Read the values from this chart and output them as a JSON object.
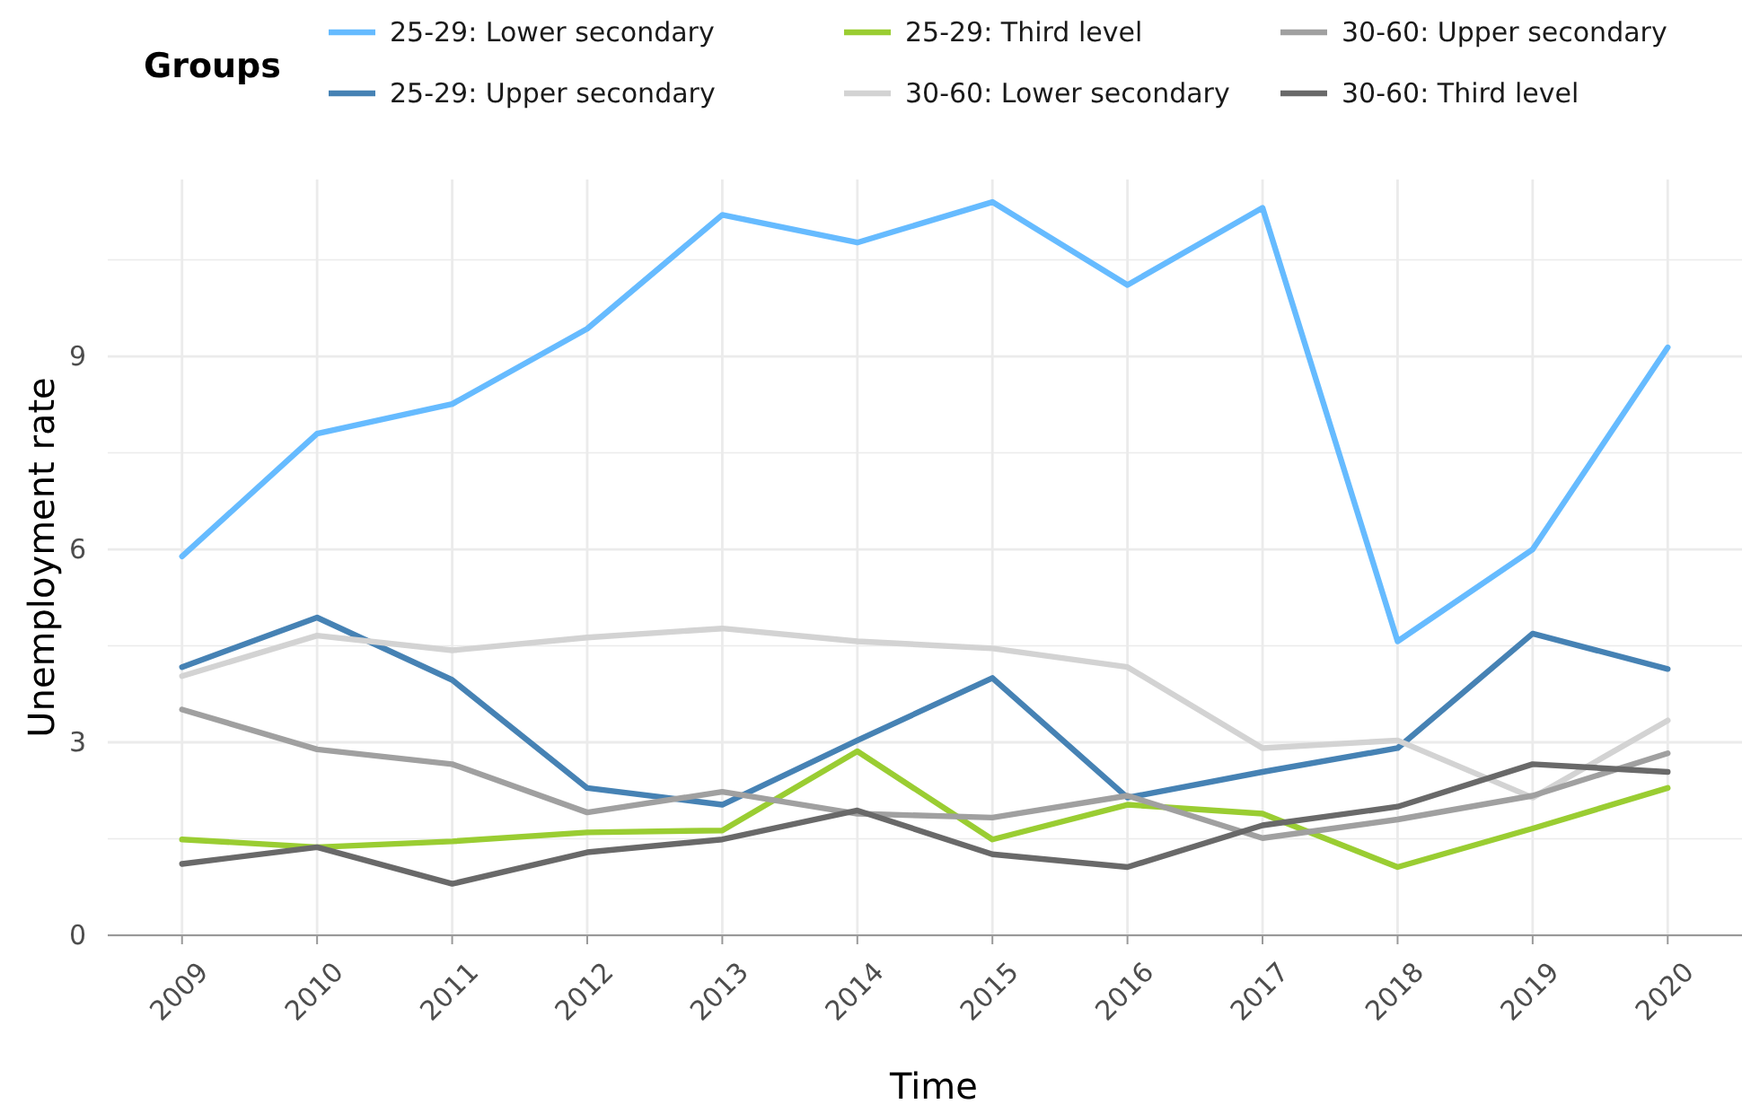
{
  "chart_data": {
    "type": "line",
    "xlabel": "Time",
    "ylabel": "Unemployment rate",
    "legend_title": "Groups",
    "legend": "top",
    "grid": true,
    "x": [
      2009,
      2010,
      2011,
      2012,
      2013,
      2014,
      2015,
      2016,
      2017,
      2018,
      2019,
      2020
    ],
    "xlim": [
      2008.45,
      2020.55
    ],
    "xticks": [
      2009,
      2010,
      2011,
      2012,
      2013,
      2014,
      2015,
      2016,
      2017,
      2018,
      2019,
      2020
    ],
    "ylim": [
      0,
      11.75
    ],
    "yticks": [
      0,
      {
        "value": 1.5,
        "label": null
      },
      3,
      {
        "value": 4.5,
        "label": null
      },
      6,
      {
        "value": 7.5,
        "label": null
      },
      9,
      {
        "value": 10.5,
        "label": null
      }
    ],
    "series": [
      {
        "name": "25-29: Lower secondary",
        "color": "#66bbff",
        "values": [
          5.89,
          7.8,
          8.26,
          9.43,
          11.2,
          10.77,
          11.4,
          10.11,
          11.31,
          4.57,
          6.0,
          9.14
        ]
      },
      {
        "name": "25-29: Upper secondary",
        "color": "#4682b4",
        "values": [
          4.17,
          4.94,
          3.97,
          2.29,
          2.03,
          3.03,
          4.0,
          2.14,
          2.54,
          2.91,
          4.69,
          4.14
        ]
      },
      {
        "name": "25-29: Third level",
        "color": "#9acd32",
        "values": [
          1.49,
          1.37,
          1.46,
          1.6,
          1.63,
          2.86,
          1.49,
          2.03,
          1.89,
          1.06,
          1.66,
          2.29
        ]
      },
      {
        "name": "30-60: Lower secondary",
        "color": "#d3d3d3",
        "values": [
          4.03,
          4.66,
          4.43,
          4.63,
          4.77,
          4.57,
          4.46,
          4.17,
          2.91,
          3.03,
          2.14,
          3.34
        ]
      },
      {
        "name": "30-60: Upper secondary",
        "color": "#a0a0a0",
        "values": [
          3.51,
          2.89,
          2.66,
          1.91,
          2.23,
          1.89,
          1.83,
          2.17,
          1.51,
          1.8,
          2.17,
          2.83
        ]
      },
      {
        "name": "30-60: Third level",
        "color": "#696969",
        "values": [
          1.11,
          1.37,
          0.8,
          1.29,
          1.49,
          1.94,
          1.26,
          1.06,
          1.71,
          2.0,
          2.66,
          2.54
        ]
      }
    ]
  }
}
